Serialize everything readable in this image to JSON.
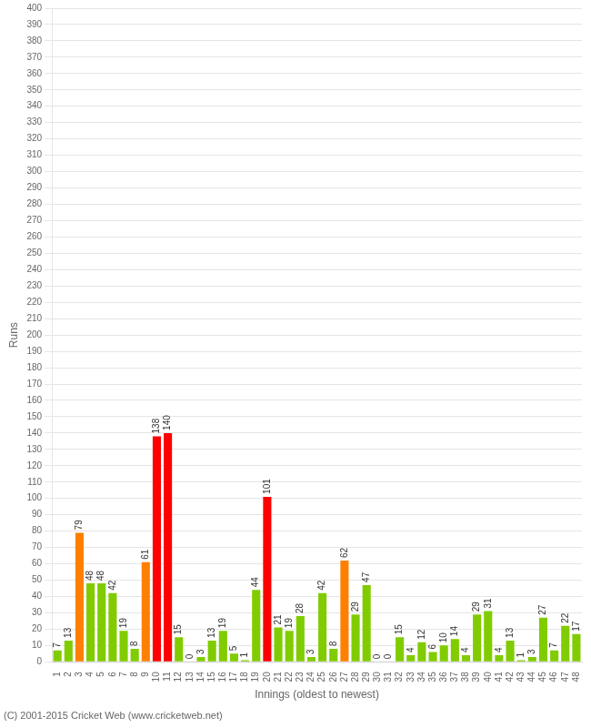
{
  "chart_data": {
    "type": "bar",
    "xlabel": "Innings (oldest to newest)",
    "ylabel": "Runs",
    "footer": "(C) 2001-2015 Cricket Web (www.cricketweb.net)",
    "categories": [
      "1",
      "2",
      "3",
      "4",
      "5",
      "6",
      "7",
      "8",
      "9",
      "10",
      "11",
      "12",
      "13",
      "14",
      "15",
      "16",
      "17",
      "18",
      "19",
      "20",
      "21",
      "22",
      "23",
      "24",
      "25",
      "26",
      "27",
      "28",
      "29",
      "30",
      "31",
      "32",
      "33",
      "34",
      "35",
      "36",
      "37",
      "38",
      "39",
      "40",
      "41",
      "42",
      "43",
      "44",
      "45",
      "46",
      "47",
      "48"
    ],
    "values": [
      7,
      13,
      79,
      48,
      48,
      42,
      19,
      8,
      61,
      138,
      140,
      15,
      0,
      3,
      13,
      19,
      5,
      1,
      44,
      101,
      21,
      19,
      28,
      3,
      42,
      8,
      62,
      29,
      47,
      0,
      0,
      15,
      4,
      12,
      6,
      10,
      14,
      4,
      29,
      31,
      4,
      13,
      1,
      3,
      27,
      7,
      22,
      17
    ],
    "colors": [
      "#80cc00",
      "#80cc00",
      "#ff8000",
      "#80cc00",
      "#80cc00",
      "#80cc00",
      "#80cc00",
      "#80cc00",
      "#ff8000",
      "#ff0000",
      "#ff0000",
      "#80cc00",
      "#80cc00",
      "#80cc00",
      "#80cc00",
      "#80cc00",
      "#80cc00",
      "#80cc00",
      "#80cc00",
      "#ff0000",
      "#80cc00",
      "#80cc00",
      "#80cc00",
      "#80cc00",
      "#80cc00",
      "#80cc00",
      "#ff8000",
      "#80cc00",
      "#80cc00",
      "#80cc00",
      "#80cc00",
      "#80cc00",
      "#80cc00",
      "#80cc00",
      "#80cc00",
      "#80cc00",
      "#80cc00",
      "#80cc00",
      "#80cc00",
      "#80cc00",
      "#80cc00",
      "#80cc00",
      "#80cc00",
      "#80cc00",
      "#80cc00",
      "#80cc00",
      "#80cc00",
      "#80cc00"
    ],
    "ylim": [
      0,
      400
    ],
    "yticks": [
      0,
      10,
      20,
      30,
      40,
      50,
      60,
      70,
      80,
      90,
      100,
      110,
      120,
      130,
      140,
      150,
      160,
      170,
      180,
      190,
      200,
      210,
      220,
      230,
      240,
      250,
      260,
      270,
      280,
      290,
      300,
      310,
      320,
      330,
      340,
      350,
      360,
      370,
      380,
      390,
      400
    ],
    "grid": true,
    "data_labels": true
  }
}
